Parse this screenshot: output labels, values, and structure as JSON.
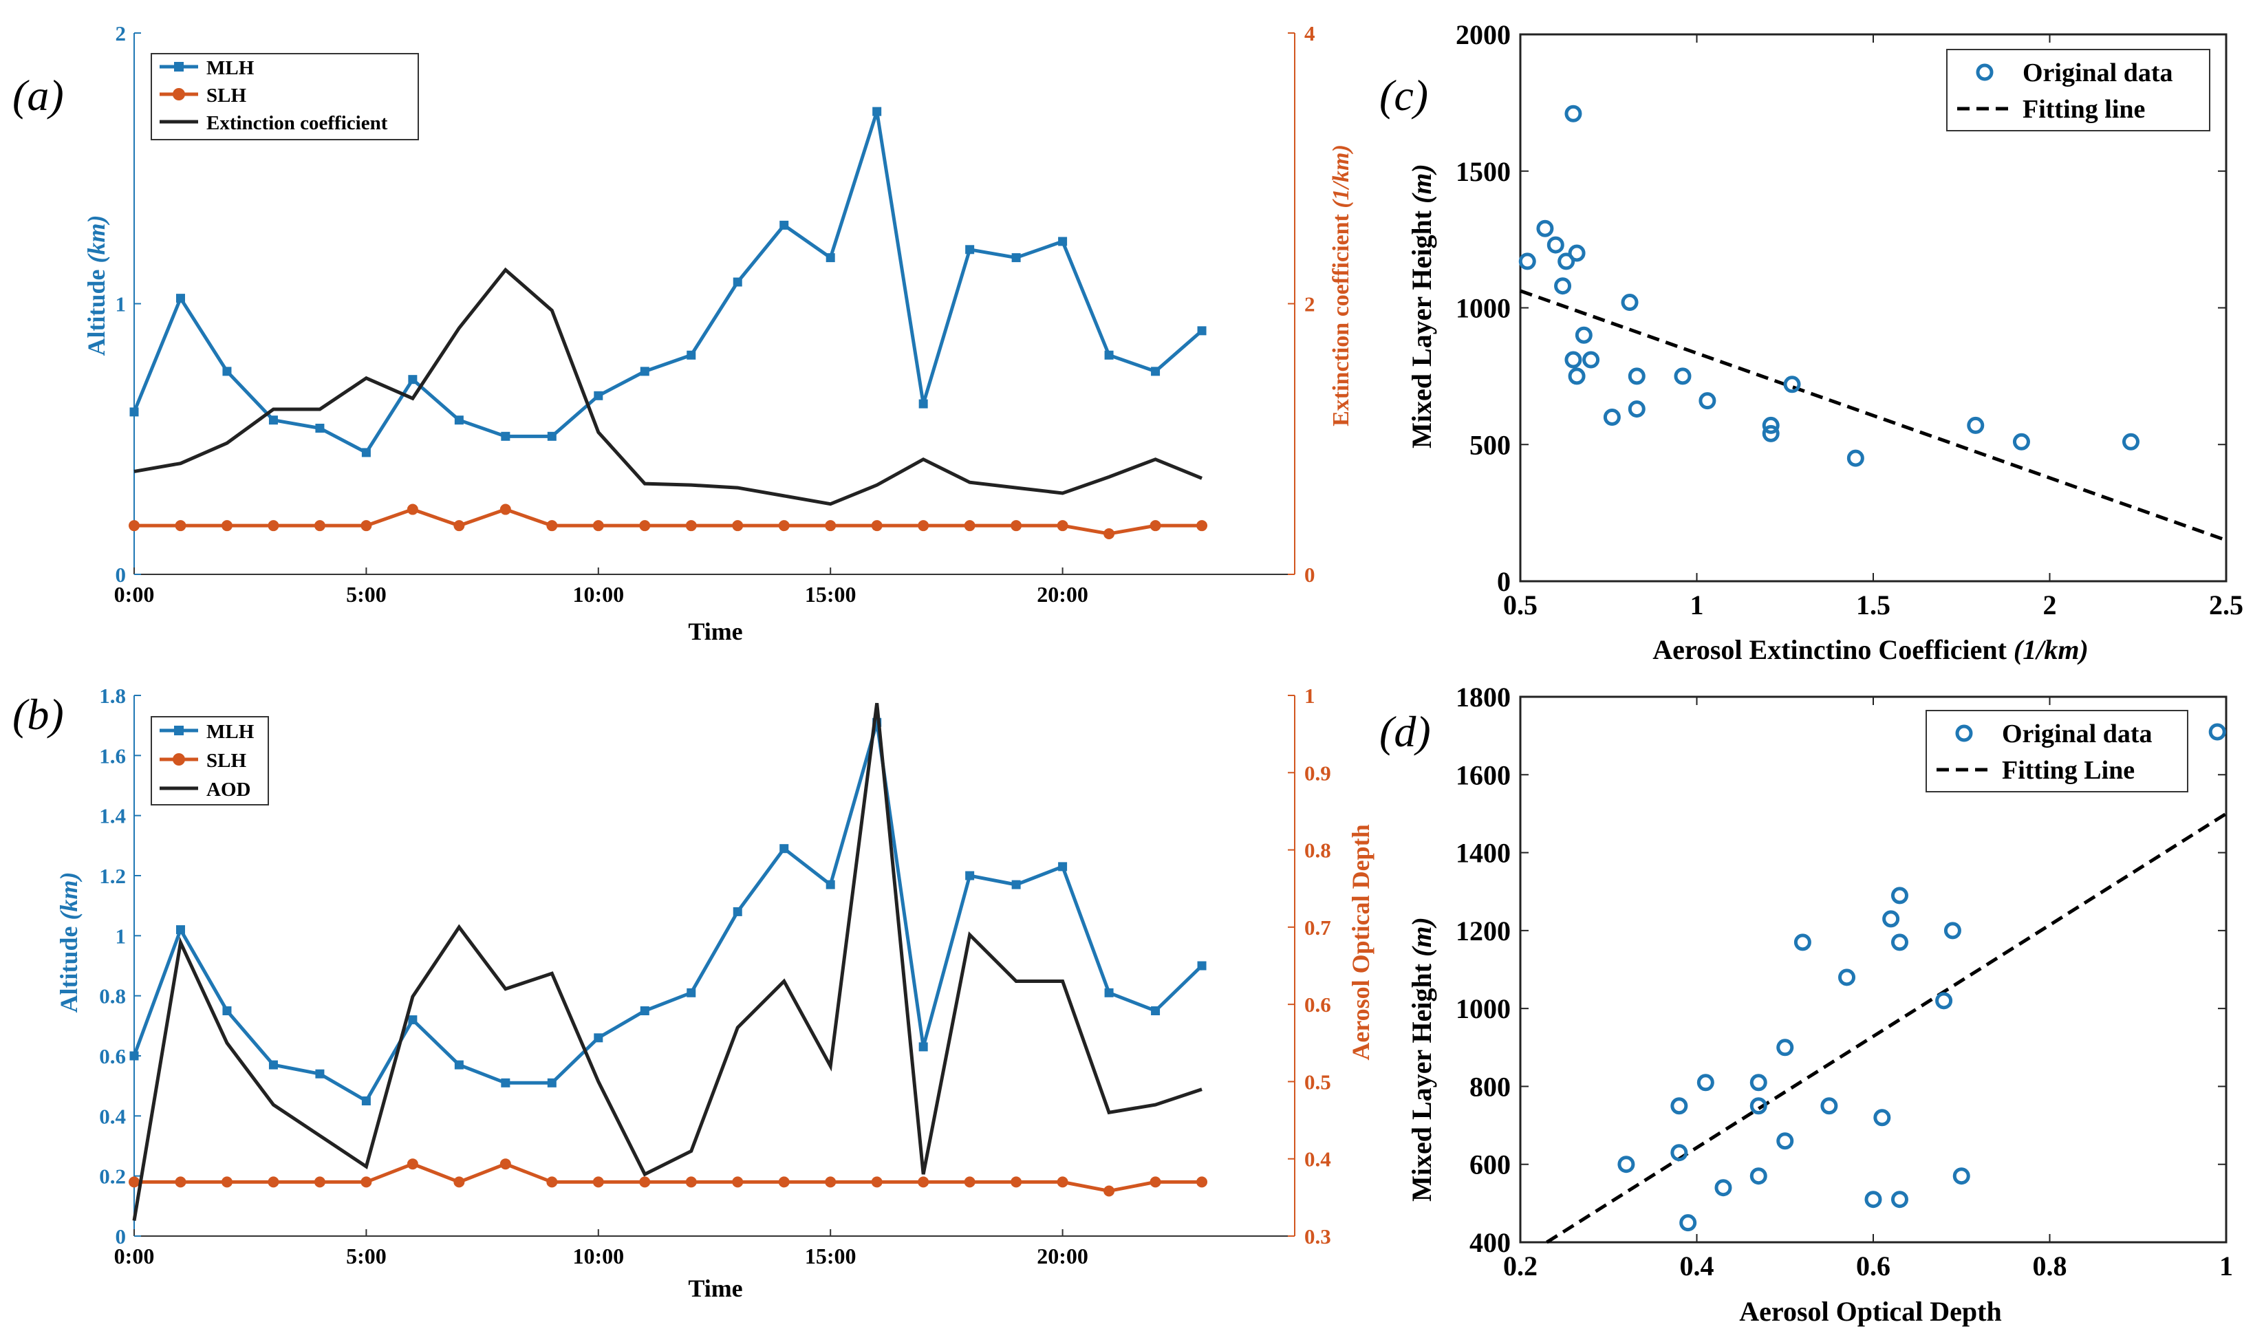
{
  "colors": {
    "blue": "#1f77b4",
    "orange": "#d2561f",
    "black": "#222222"
  },
  "panel_labels": [
    "(a)",
    "(b)",
    "(c)",
    "(d)"
  ],
  "chart_data": [
    {
      "id": "a",
      "type": "line",
      "categories_count": 24,
      "x": [
        0,
        1,
        2,
        3,
        4,
        5,
        6,
        7,
        8,
        9,
        10,
        11,
        12,
        13,
        14,
        15,
        16,
        17,
        18,
        19,
        20,
        21,
        22,
        23
      ],
      "xlim": [
        0,
        25
      ],
      "xticks": [
        0,
        5,
        10,
        15,
        20
      ],
      "xtick_labels": [
        "0:00",
        "5:00",
        "10:00",
        "15:00",
        "20:00"
      ],
      "xlabel": "Time",
      "ylabel_left": "Altitude (km)",
      "ylabel_left_main": "Altitude ",
      "ylabel_left_unit": "(km)",
      "ylim_left": [
        0,
        2
      ],
      "yticks_left": [
        0,
        1,
        2
      ],
      "ytick_labels_left": [
        "0",
        "1",
        "2"
      ],
      "ylabel_right": "Extinction coefficient (1/km)",
      "ylabel_right_main": "Extinction coefficient ",
      "ylabel_right_unit": "(1/km)",
      "ylim_right": [
        0,
        4
      ],
      "yticks_right": [
        0,
        2,
        4
      ],
      "ytick_labels_right": [
        "0",
        "2",
        "4"
      ],
      "legend_position": "top-left",
      "series": [
        {
          "name": "MLH",
          "axis": "left",
          "color": "blue",
          "marker": "square",
          "values": [
            0.6,
            1.02,
            0.75,
            0.57,
            0.54,
            0.45,
            0.72,
            0.57,
            0.51,
            0.51,
            0.66,
            0.75,
            0.81,
            1.08,
            1.29,
            1.17,
            1.71,
            0.63,
            1.2,
            1.17,
            1.23,
            0.81,
            0.75,
            0.9
          ]
        },
        {
          "name": "SLH",
          "axis": "left",
          "color": "orange",
          "marker": "circle",
          "values": [
            0.18,
            0.18,
            0.18,
            0.18,
            0.18,
            0.18,
            0.24,
            0.18,
            0.24,
            0.18,
            0.18,
            0.18,
            0.18,
            0.18,
            0.18,
            0.18,
            0.18,
            0.18,
            0.18,
            0.18,
            0.18,
            0.15,
            0.18,
            0.18
          ]
        },
        {
          "name": "Extinction coefficient",
          "axis": "right",
          "color": "black",
          "marker": "none",
          "values": [
            0.76,
            0.82,
            0.97,
            1.22,
            1.22,
            1.45,
            1.3,
            1.82,
            2.25,
            1.95,
            1.05,
            0.67,
            0.66,
            0.64,
            0.58,
            0.52,
            0.66,
            0.85,
            0.68,
            0.64,
            0.6,
            0.72,
            0.85,
            0.71
          ]
        }
      ]
    },
    {
      "id": "b",
      "type": "line",
      "x": [
        0,
        1,
        2,
        3,
        4,
        5,
        6,
        7,
        8,
        9,
        10,
        11,
        12,
        13,
        14,
        15,
        16,
        17,
        18,
        19,
        20,
        21,
        22,
        23
      ],
      "xlim": [
        0,
        25
      ],
      "xticks": [
        0,
        5,
        10,
        15,
        20
      ],
      "xtick_labels": [
        "0:00",
        "5:00",
        "10:00",
        "15:00",
        "20:00"
      ],
      "xlabel": "Time",
      "ylabel_left": "Altitude (km)",
      "ylabel_left_main": "Altitude ",
      "ylabel_left_unit": "(km)",
      "ylim_left": [
        0,
        1.8
      ],
      "yticks_left": [
        0,
        0.2,
        0.4,
        0.6,
        0.8,
        1,
        1.2,
        1.4,
        1.6,
        1.8
      ],
      "ytick_labels_left": [
        "0",
        "0.2",
        "0.4",
        "0.6",
        "0.8",
        "1",
        "1.2",
        "1.4",
        "1.6",
        "1.8"
      ],
      "ylabel_right": "Aerosol Optical Depth",
      "ylabel_right_main": "Aerosol Optical Depth",
      "ylabel_right_unit": "",
      "ylim_right": [
        0.3,
        1.0
      ],
      "yticks_right": [
        0.3,
        0.4,
        0.5,
        0.6,
        0.7,
        0.8,
        0.9,
        1.0
      ],
      "ytick_labels_right": [
        "0.3",
        "0.4",
        "0.5",
        "0.6",
        "0.7",
        "0.8",
        "0.9",
        "1"
      ],
      "legend_position": "top-left",
      "series": [
        {
          "name": "MLH",
          "axis": "left",
          "color": "blue",
          "marker": "square",
          "values": [
            0.6,
            1.02,
            0.75,
            0.57,
            0.54,
            0.45,
            0.72,
            0.57,
            0.51,
            0.51,
            0.66,
            0.75,
            0.81,
            1.08,
            1.29,
            1.17,
            1.71,
            0.63,
            1.2,
            1.17,
            1.23,
            0.81,
            0.75,
            0.9
          ]
        },
        {
          "name": "SLH",
          "axis": "left",
          "color": "orange",
          "marker": "circle",
          "values": [
            0.18,
            0.18,
            0.18,
            0.18,
            0.18,
            0.18,
            0.24,
            0.18,
            0.24,
            0.18,
            0.18,
            0.18,
            0.18,
            0.18,
            0.18,
            0.18,
            0.18,
            0.18,
            0.18,
            0.18,
            0.18,
            0.15,
            0.18,
            0.18
          ]
        },
        {
          "name": "AOD",
          "axis": "right",
          "color": "black",
          "marker": "none",
          "values": [
            0.32,
            0.68,
            0.55,
            0.47,
            0.43,
            0.39,
            0.61,
            0.7,
            0.62,
            0.64,
            0.5,
            0.38,
            0.41,
            0.57,
            0.63,
            0.52,
            0.99,
            0.38,
            0.69,
            0.63,
            0.63,
            0.46,
            0.47,
            0.49
          ]
        }
      ]
    },
    {
      "id": "c",
      "type": "scatter",
      "xlim": [
        0.5,
        2.5
      ],
      "ylim": [
        0,
        2000
      ],
      "xticks": [
        0.5,
        1,
        1.5,
        2,
        2.5
      ],
      "xtick_labels": [
        "0.5",
        "1",
        "1.5",
        "2",
        "2.5"
      ],
      "yticks": [
        0,
        500,
        1000,
        1500,
        2000
      ],
      "ytick_labels": [
        "0",
        "500",
        "1000",
        "1500",
        "2000"
      ],
      "xlabel": "Aerosol Extinctino Coefficient (1/km)",
      "xlabel_main": "Aerosol Extinctino Coefficient ",
      "xlabel_unit": "(1/km)",
      "ylabel": "Mixed Layer Height (m)",
      "ylabel_main": "Mixed Layer Height ",
      "ylabel_unit": "(m)",
      "legend_position": "top-right",
      "legend": [
        "Original data",
        "Fitting line"
      ],
      "points": [
        [
          0.52,
          1170
        ],
        [
          0.57,
          1290
        ],
        [
          0.6,
          1230
        ],
        [
          0.63,
          1170
        ],
        [
          0.66,
          1200
        ],
        [
          0.62,
          1080
        ],
        [
          0.65,
          1710
        ],
        [
          0.81,
          1020
        ],
        [
          0.68,
          900
        ],
        [
          0.65,
          810
        ],
        [
          0.7,
          810
        ],
        [
          0.66,
          750
        ],
        [
          0.83,
          750
        ],
        [
          0.96,
          750
        ],
        [
          1.03,
          660
        ],
        [
          0.83,
          630
        ],
        [
          0.76,
          600
        ],
        [
          1.27,
          720
        ],
        [
          1.21,
          570
        ],
        [
          1.21,
          540
        ],
        [
          1.45,
          450
        ],
        [
          1.79,
          570
        ],
        [
          1.92,
          510
        ],
        [
          2.23,
          510
        ]
      ],
      "fit_line": [
        [
          0.5,
          1062
        ],
        [
          2.5,
          150
        ]
      ]
    },
    {
      "id": "d",
      "type": "scatter",
      "xlim": [
        0.2,
        1.0
      ],
      "ylim": [
        400,
        1800
      ],
      "xticks": [
        0.2,
        0.4,
        0.6,
        0.8,
        1.0
      ],
      "xtick_labels": [
        "0.2",
        "0.4",
        "0.6",
        "0.8",
        "1"
      ],
      "yticks": [
        400,
        600,
        800,
        1000,
        1200,
        1400,
        1600,
        1800
      ],
      "ytick_labels": [
        "400",
        "600",
        "800",
        "1000",
        "1200",
        "1400",
        "1600",
        "1800"
      ],
      "xlabel": "Aerosol Optical Depth",
      "ylabel": "Mixed Layer Height (m)",
      "ylabel_main": "Mixed Layer Height ",
      "ylabel_unit": "(m)",
      "legend_position": "top-right",
      "legend": [
        "Original data",
        "Fitting Line"
      ],
      "points": [
        [
          0.32,
          600
        ],
        [
          0.38,
          630
        ],
        [
          0.39,
          450
        ],
        [
          0.38,
          750
        ],
        [
          0.41,
          810
        ],
        [
          0.43,
          540
        ],
        [
          0.47,
          570
        ],
        [
          0.47,
          810
        ],
        [
          0.47,
          750
        ],
        [
          0.5,
          660
        ],
        [
          0.5,
          900
        ],
        [
          0.52,
          1170
        ],
        [
          0.55,
          750
        ],
        [
          0.57,
          1080
        ],
        [
          0.6,
          510
        ],
        [
          0.61,
          720
        ],
        [
          0.63,
          510
        ],
        [
          0.62,
          1230
        ],
        [
          0.63,
          1170
        ],
        [
          0.63,
          1290
        ],
        [
          0.68,
          1020
        ],
        [
          0.69,
          1200
        ],
        [
          0.7,
          570
        ],
        [
          0.99,
          1710
        ]
      ],
      "fit_line": [
        [
          0.23,
          400
        ],
        [
          1.0,
          1500
        ]
      ]
    }
  ]
}
